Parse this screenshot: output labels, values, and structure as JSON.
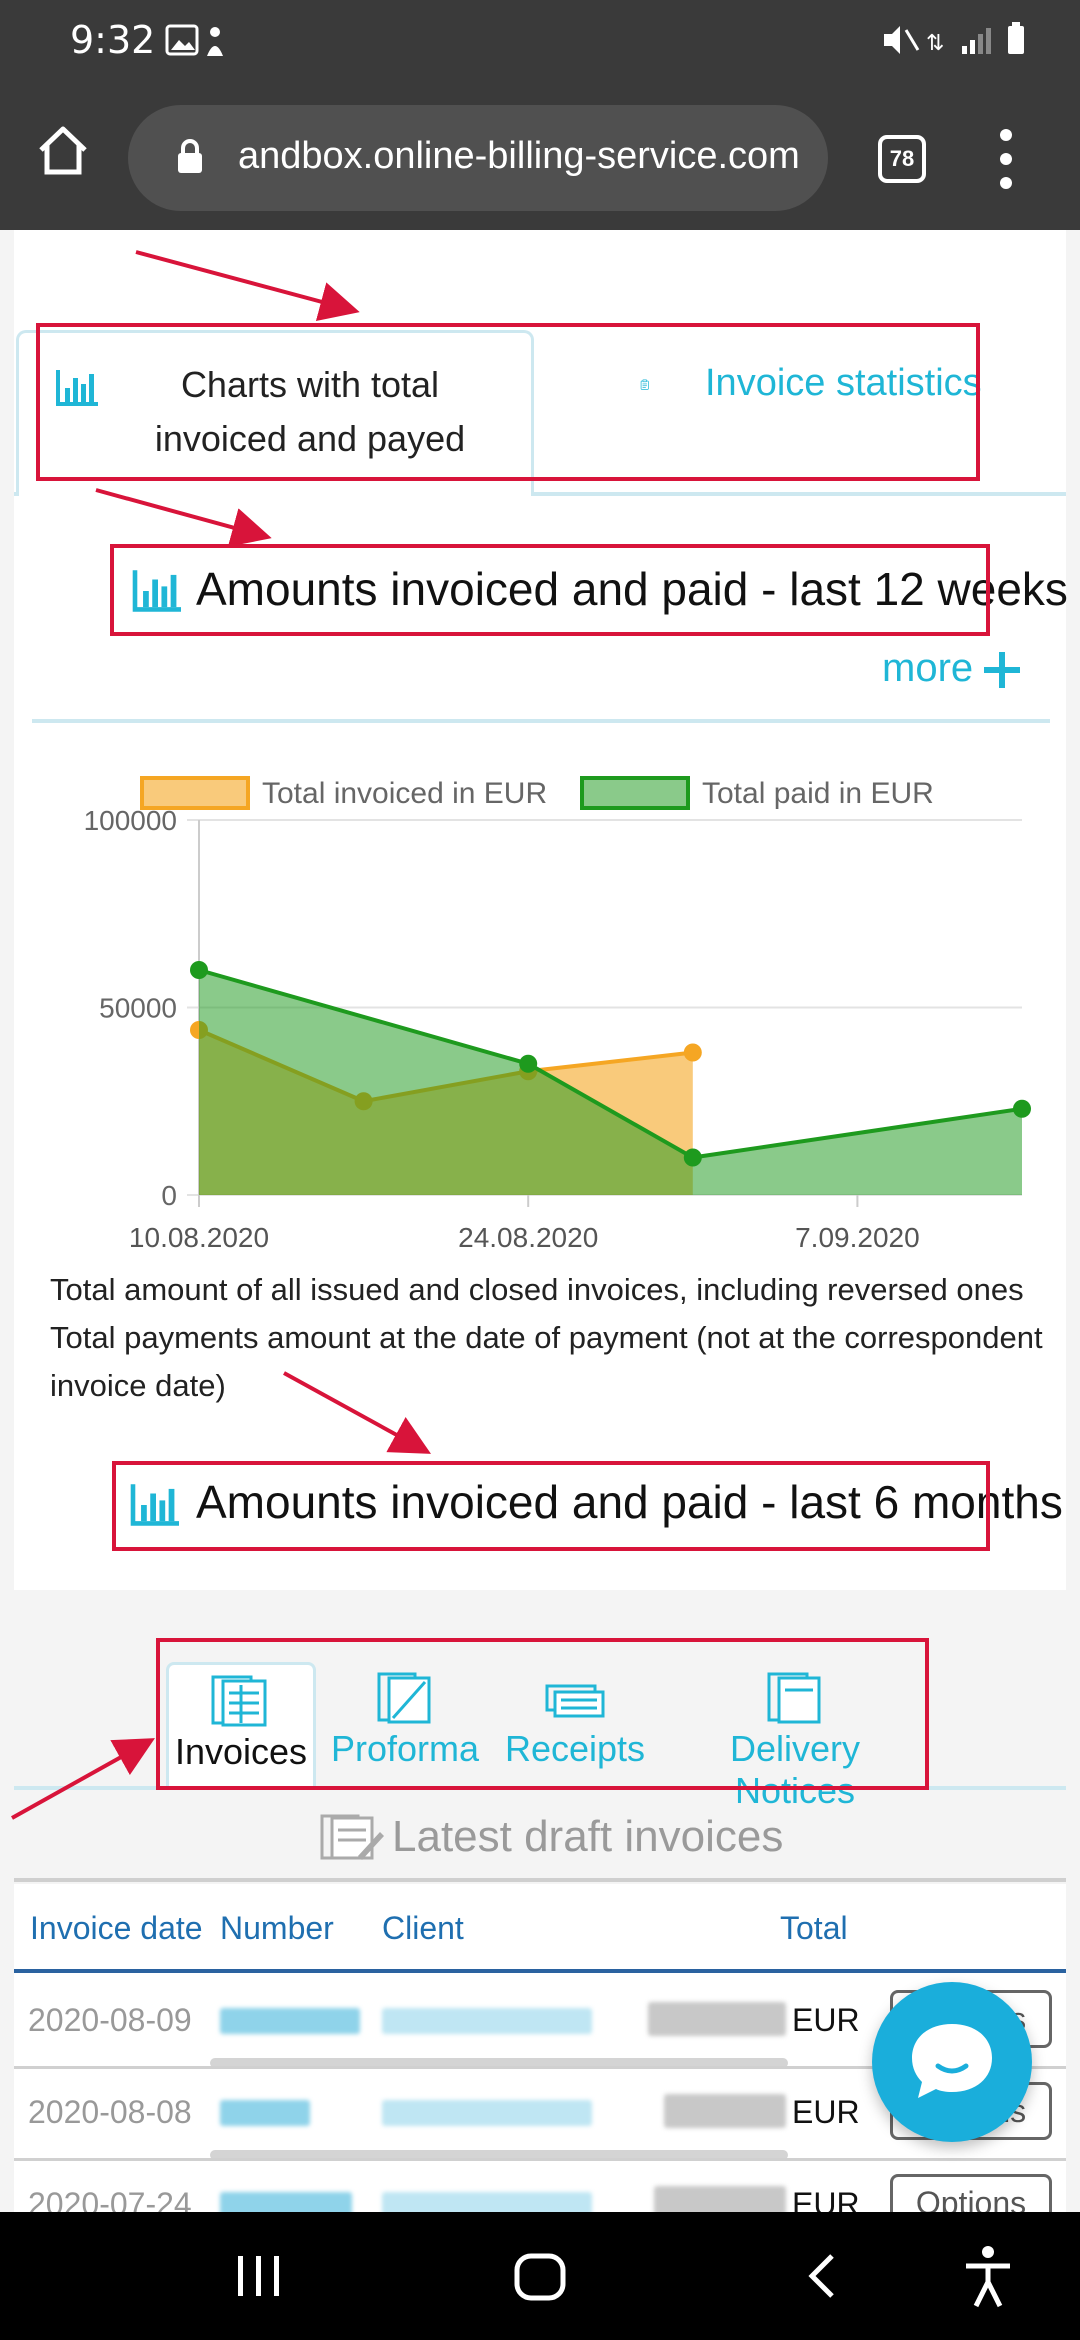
{
  "status_bar": {
    "time": "9:32",
    "left_icons": [
      "image-icon",
      "notification-icon"
    ],
    "right_icons": [
      "mute-icon",
      "data-icon",
      "signal-icon",
      "battery-icon"
    ]
  },
  "browser": {
    "url": "andbox.online-billing-service.com",
    "tab_count": "78"
  },
  "tabs": {
    "charts_label": "Charts with total invoiced and payed",
    "stats_label": "Invoice statistics"
  },
  "section_weeks": {
    "title": "Amounts invoiced and paid - last 12 weeks",
    "more": "more"
  },
  "chart_data": {
    "type": "area",
    "series": [
      {
        "name": "Total invoiced in EUR",
        "color": "#f5a623",
        "x": [
          "10.08.2020",
          "17.08.2020",
          "24.08.2020",
          "31.08.2020"
        ],
        "values": [
          44000,
          25000,
          33000,
          38000
        ]
      },
      {
        "name": "Total paid in EUR",
        "color": "#1e9a1e",
        "x": [
          "10.08.2020",
          "24.08.2020",
          "31.08.2020",
          "14.09.2020"
        ],
        "values": [
          60000,
          35000,
          10000,
          23000
        ]
      }
    ],
    "x_ticks": [
      "10.08.2020",
      "24.08.2020",
      "7.09.2020"
    ],
    "y_ticks": [
      "100000",
      "50000",
      "0"
    ],
    "ylim": [
      0,
      100000
    ],
    "legend_position": "top",
    "grid": true
  },
  "notes": {
    "line1": "Total amount of all issued and closed invoices, including reversed ones",
    "line2": "Total payments amount at the date of payment (not at the correspondent invoice date)"
  },
  "section_months": {
    "title": "Amounts invoiced and paid - last 6 months"
  },
  "doc_tabs": [
    {
      "label": "Invoices",
      "active": true
    },
    {
      "label": "Proforma",
      "active": false
    },
    {
      "label": "Receipts",
      "active": false
    },
    {
      "label": "Delivery Notices",
      "active": false
    }
  ],
  "drafts": {
    "title": "Latest draft invoices",
    "headers": {
      "date": "Invoice date",
      "number": "Number",
      "client": "Client",
      "total": "Total"
    },
    "rows": [
      {
        "date": "2020-08-09",
        "currency": "EUR",
        "options": "Options"
      },
      {
        "date": "2020-08-08",
        "currency": "EUR",
        "options": "Options"
      },
      {
        "date": "2020-07-24",
        "currency": "EUR",
        "options": "Options"
      }
    ]
  }
}
